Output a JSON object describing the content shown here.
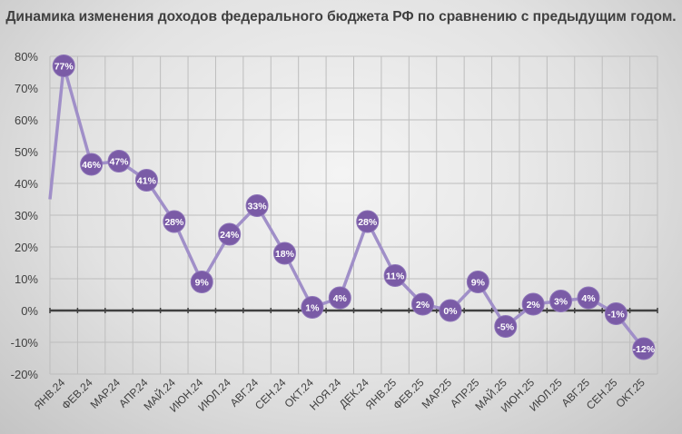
{
  "chart_data": {
    "type": "line",
    "title": "Динамика изменения доходов федерального бюджета РФ по сравнению с предыдущим годом.",
    "categories": [
      "ЯНВ.24",
      "ФЕВ.24",
      "МАР.24",
      "АПР.24",
      "МАЙ.24",
      "ИЮН.24",
      "ИЮЛ.24",
      "АВГ.24",
      "СЕН.24",
      "ОКТ.24",
      "НОЯ.24",
      "ДЕК.24",
      "ЯНВ.25",
      "ФЕВ.25",
      "МАР.25",
      "АПР.25",
      "МАЙ.25",
      "ИЮН.25",
      "ИЮЛ.25",
      "АВГ.25",
      "СЕН.25",
      "ОКТ.25"
    ],
    "values": [
      77,
      46,
      47,
      41,
      28,
      9,
      24,
      33,
      18,
      1,
      4,
      28,
      11,
      2,
      0,
      9,
      -5,
      2,
      3,
      4,
      -1,
      -12
    ],
    "data_labels": [
      "77%",
      "46%",
      "47%",
      "41%",
      "28%",
      "9%",
      "24%",
      "33%",
      "18%",
      "1%",
      "4%",
      "28%",
      "11%",
      "2%",
      "0%",
      "9%",
      "-5%",
      "2%",
      "3%",
      "4%",
      "-1%",
      "-12%"
    ],
    "yticks": [
      "-20%",
      "-10%",
      "0%",
      "10%",
      "20%",
      "30%",
      "40%",
      "50%",
      "60%",
      "70%",
      "80%"
    ],
    "ylim": [
      -20,
      80
    ],
    "grid": true,
    "legend": "none",
    "colors": {
      "line": "#a08fc8",
      "marker": "#7a5ba6",
      "label": "#ffffff",
      "axis": "#404040",
      "grid": "#bdbdbd"
    }
  }
}
